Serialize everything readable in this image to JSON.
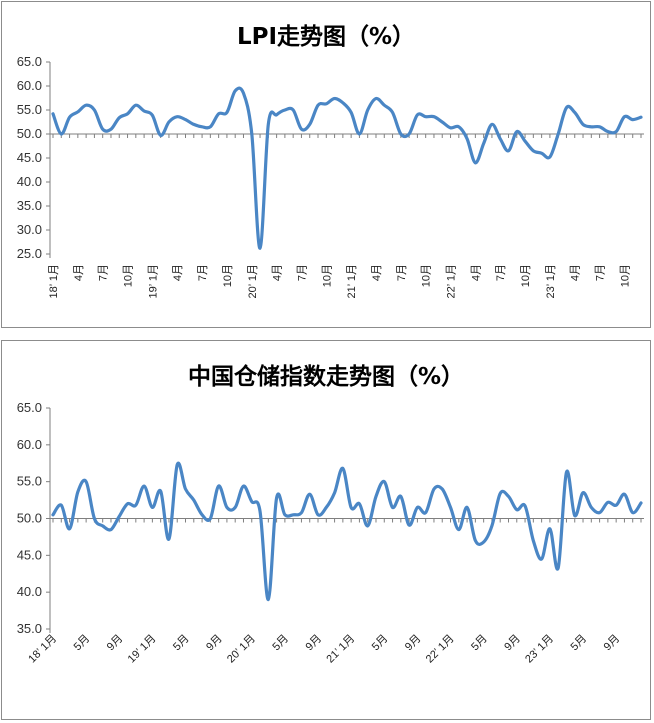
{
  "chart_data": [
    {
      "type": "line",
      "title": "LPI走势图（%）",
      "ylim": [
        25,
        65
      ],
      "yticks": [
        "25.0",
        "30.0",
        "35.0",
        "40.0",
        "45.0",
        "50.0",
        "55.0",
        "60.0",
        "65.0"
      ],
      "baseline": 50,
      "grid": false,
      "xtick_labels": [
        "18’ 1月",
        "4月",
        "7月",
        "10月",
        "19’ 1月",
        "4月",
        "7月",
        "10月",
        "20’ 1月",
        "4月",
        "7月",
        "10月",
        "21’ 1月",
        "4月",
        "7月",
        "10月",
        "22’ 1月",
        "4月",
        "7月",
        "10月",
        "23’ 1月",
        "4月",
        "7月",
        "10月"
      ],
      "series": [
        {
          "color": "#4a86c5",
          "values": [
            54.2,
            50.0,
            53.5,
            54.6,
            56.0,
            55.0,
            51.0,
            51.0,
            53.4,
            54.2,
            56.0,
            54.8,
            53.9,
            49.7,
            52.5,
            53.6,
            53.0,
            52.0,
            51.5,
            51.5,
            54.2,
            54.5,
            59.0,
            58.5,
            50.0,
            26.2,
            52.0,
            54.0,
            55.0,
            55.0,
            51.0,
            52.0,
            56.0,
            56.3,
            57.4,
            56.5,
            54.5,
            50.0,
            55.0,
            57.4,
            56.0,
            54.5,
            50.0,
            50.0,
            54.0,
            53.6,
            53.6,
            52.5,
            51.3,
            51.5,
            49.0,
            44.0,
            48.0,
            52.0,
            49.0,
            46.5,
            50.5,
            48.5,
            46.5,
            46.0,
            45.2,
            50.0,
            55.5,
            54.5,
            52.0,
            51.5,
            51.5,
            50.5,
            50.5,
            53.6,
            53.0,
            53.5
          ]
        }
      ]
    },
    {
      "type": "line",
      "title": "中国仓储指数走势图（%）",
      "ylim": [
        35,
        65
      ],
      "yticks": [
        "35.0",
        "40.0",
        "45.0",
        "50.0",
        "55.0",
        "60.0",
        "65.0"
      ],
      "baseline": 50,
      "grid": false,
      "xtick_labels": [
        "18’ 1月",
        "5月",
        "9月",
        "19’ 1月",
        "5月",
        "9月",
        "20’ 1月",
        "5月",
        "9月",
        "21’ 1月",
        "5月",
        "9月",
        "22’ 1月",
        "5月",
        "9月",
        "23’ 1月",
        "5月",
        "9月"
      ],
      "series": [
        {
          "color": "#4a86c5",
          "values": [
            50.5,
            51.8,
            48.6,
            53.6,
            55.0,
            50.0,
            49.0,
            48.5,
            50.3,
            52.0,
            51.8,
            54.4,
            51.5,
            53.7,
            47.2,
            57.3,
            54.0,
            52.5,
            50.5,
            50.0,
            54.4,
            51.5,
            51.5,
            54.4,
            52.3,
            51.0,
            39.0,
            52.8,
            50.5,
            50.5,
            50.8,
            53.3,
            50.5,
            51.5,
            53.5,
            56.8,
            51.5,
            52.0,
            49.0,
            53.0,
            55.0,
            51.5,
            53.0,
            49.1,
            51.5,
            50.8,
            54.0,
            54.0,
            51.5,
            48.5,
            51.5,
            47.0,
            46.8,
            49.0,
            53.4,
            53.0,
            51.2,
            51.7,
            47.0,
            44.5,
            48.6,
            43.3,
            56.3,
            50.4,
            53.5,
            51.5,
            50.8,
            52.2,
            51.8,
            53.3,
            50.8,
            52.1
          ]
        }
      ]
    }
  ]
}
